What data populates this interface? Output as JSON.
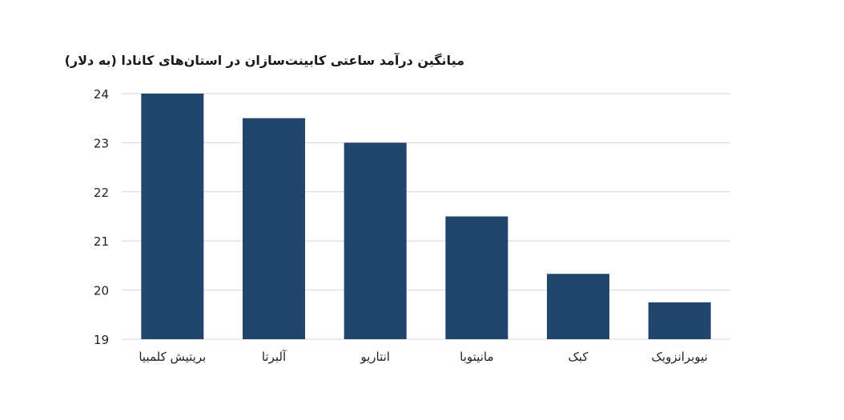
{
  "chart_data": {
    "type": "bar",
    "title": "میانگین درآمد ساعتی کابینت‌سازان در استان‌های کانادا (به دلار)",
    "xlabel": "",
    "ylabel": "",
    "categories": [
      "بریتیش کلمبیا",
      "آلبرتا",
      "انتاریو",
      "مانیتوبا",
      "کبک",
      "نیوبرانزویک"
    ],
    "values": [
      24,
      23.5,
      23,
      21.5,
      20.33,
      19.75
    ],
    "ylim": [
      19,
      24
    ],
    "yticks": [
      19,
      20,
      21,
      22,
      23,
      24
    ],
    "grid": true,
    "legend": "none",
    "bar_color": "#22466b"
  }
}
